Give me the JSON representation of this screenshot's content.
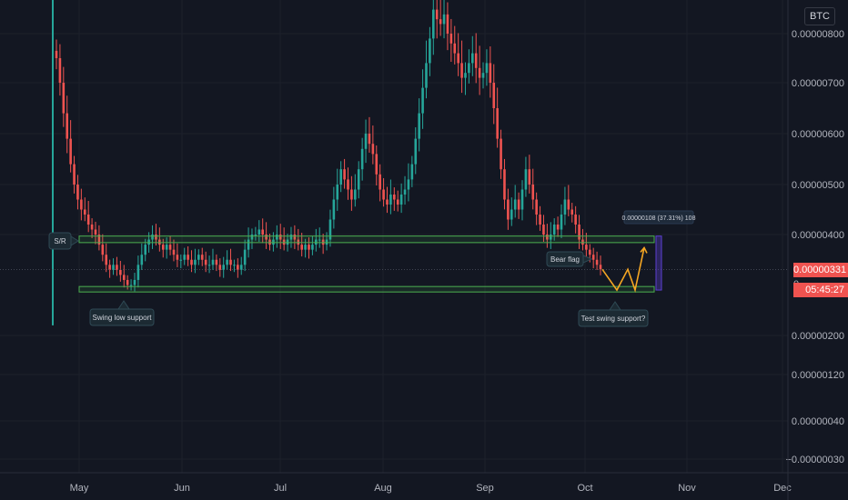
{
  "header": {
    "currency": "BTC"
  },
  "price_tags": {
    "last_price": "0.00000331",
    "countdown": "05:45:27"
  },
  "annotations": {
    "sr": "S/R",
    "swing_low": "Swing low support",
    "bear_flag": "Bear flag",
    "test_swing": "Test swing support?",
    "measure": "0.00000108 (37.31%) 108",
    "partial_label": "0."
  },
  "colors": {
    "background": "#131722",
    "up": "#26a69a",
    "down": "#ef5350",
    "zone": "#4caf50",
    "projection": "#f5a623",
    "measure": "#5b3fd1"
  },
  "chart_data": {
    "type": "candlestick",
    "title": "",
    "currency": "BTC",
    "xlabel": "",
    "ylabel": "",
    "x_ticks": [
      "May",
      "Jun",
      "Jul",
      "Aug",
      "Sep",
      "Oct",
      "Nov",
      "Dec"
    ],
    "y_ticks": [
      {
        "value": 8e-06,
        "label": "0.00000800"
      },
      {
        "value": 7e-06,
        "label": "0.00000700"
      },
      {
        "value": 6e-06,
        "label": "0.00000600"
      },
      {
        "value": 5e-06,
        "label": "0.00000500"
      },
      {
        "value": 4e-06,
        "label": "0.00000400"
      },
      {
        "value": 2e-06,
        "label": "0.00000200"
      },
      {
        "value": 1.2e-06,
        "label": "0.00000120"
      },
      {
        "value": 4e-07,
        "label": "0.00000040"
      },
      {
        "value": -3e-07,
        "label": "−0.00000030"
      }
    ],
    "last_price": 3.31e-06,
    "support_zones": [
      {
        "name": "S/R",
        "low": 3.84e-06,
        "high": 3.97e-06
      },
      {
        "name": "Swing low support",
        "low": 2.9e-06,
        "high": 2.97e-06
      }
    ],
    "projection_path": [
      3.31e-06,
      2.9e-06,
      3.31e-06,
      2.9e-06,
      3.74e-06
    ],
    "series": [
      {
        "name": "",
        "values": [
          7.5e-06,
          7e-06,
          6.4e-06,
          5.9e-06,
          5.4e-06,
          5e-06,
          4.7e-06,
          4.5e-06,
          4.4e-06,
          4.2e-06,
          4.1e-06,
          4e-06,
          3.8e-06,
          3.6e-06,
          3.4e-06,
          3.3e-06,
          3.4e-06,
          3.3e-06,
          3.2e-06,
          3.1e-06,
          3e-06,
          3e-06,
          3.1e-06,
          3.4e-06,
          3.6e-06,
          3.8e-06,
          3.9e-06,
          4e-06,
          3.9e-06,
          3.8e-06,
          3.7e-06,
          3.8e-06,
          3.7e-06,
          3.6e-06,
          3.5e-06,
          3.5e-06,
          3.6e-06,
          3.5e-06,
          3.4e-06,
          3.5e-06,
          3.6e-06,
          3.5e-06,
          3.4e-06,
          3.4e-06,
          3.5e-06,
          3.4e-06,
          3.3e-06,
          3.4e-06,
          3.5e-06,
          3.4e-06,
          3.4e-06,
          3.3e-06,
          3.4e-06,
          3.7e-06,
          3.9e-06,
          4e-06,
          4e-06,
          4.1e-06,
          4e-06,
          3.9e-06,
          3.8e-06,
          3.9e-06,
          4e-06,
          3.9e-06,
          3.8e-06,
          3.9e-06,
          4e-06,
          3.9e-06,
          3.8e-06,
          3.7e-06,
          3.8e-06,
          3.7e-06,
          3.8e-06,
          3.9e-06,
          3.9e-06,
          3.8e-06,
          3.9e-06,
          4.3e-06,
          4.7e-06,
          5e-06,
          5.3e-06,
          5.1e-06,
          4.9e-06,
          4.7e-06,
          4.9e-06,
          5.3e-06,
          5.7e-06,
          6e-06,
          5.8e-06,
          5.6e-06,
          5.2e-06,
          4.9e-06,
          4.7e-06,
          4.6e-06,
          4.8e-06,
          4.7e-06,
          4.6e-06,
          4.8e-06,
          4.9e-06,
          5.1e-06,
          5.4e-06,
          5.9e-06,
          6.4e-06,
          6.9e-06,
          7.4e-06,
          7.9e-06,
          8.5e-06,
          8.3e-06,
          8.2e-06,
          8.4e-06,
          8e-06,
          7.8e-06,
          7.6e-06,
          7.4e-06,
          7.1e-06,
          7.2e-06,
          7.4e-06,
          7.6e-06,
          7.3e-06,
          7.1e-06,
          7.2e-06,
          7.4e-06,
          7e-06,
          6.5e-06,
          5.9e-06,
          5.3e-06,
          4.7e-06,
          4.3e-06,
          4.5e-06,
          4.7e-06,
          4.5e-06,
          4.9e-06,
          5.3e-06,
          5e-06,
          4.7e-06,
          4.4e-06,
          4.2e-06,
          4e-06,
          3.9e-06,
          4e-06,
          4.2e-06,
          4.1e-06,
          4.4e-06,
          4.7e-06,
          4.5e-06,
          4.4e-06,
          4.2e-06,
          3.9e-06,
          3.8e-06,
          3.7e-06,
          3.6e-06,
          3.5e-06,
          3.4e-06,
          3.31e-06
        ]
      }
    ]
  }
}
